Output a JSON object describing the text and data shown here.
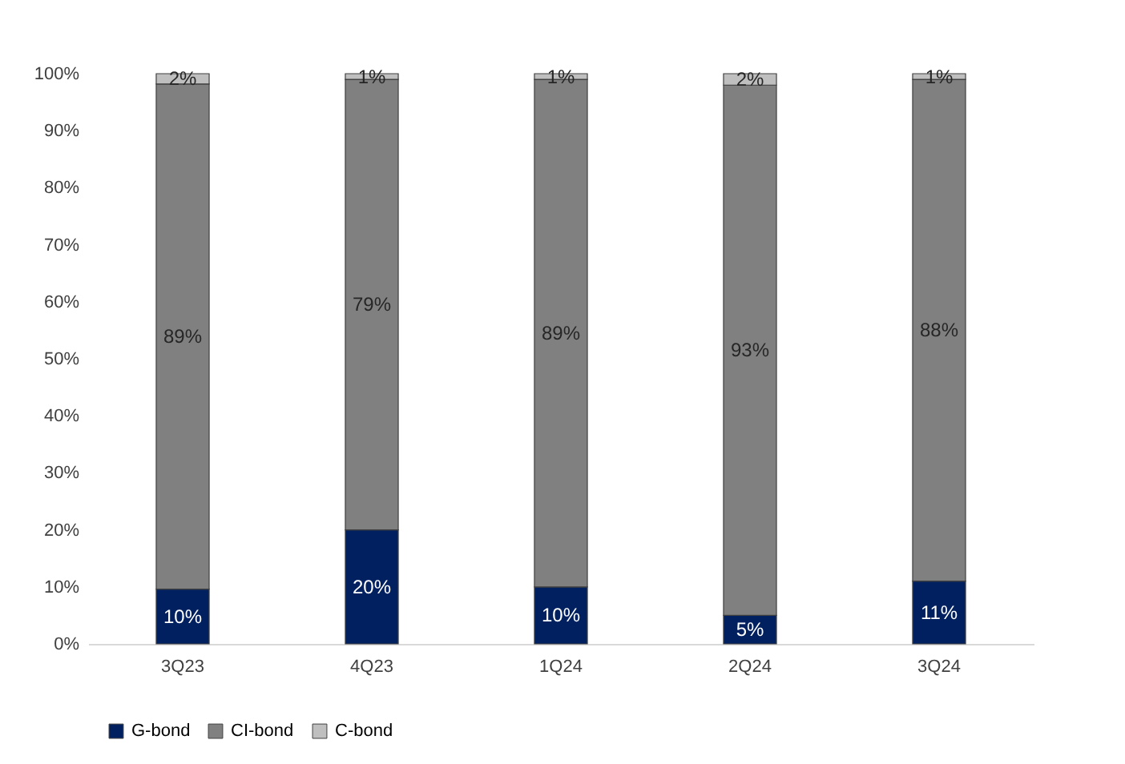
{
  "chart_data": {
    "type": "bar",
    "stacked": true,
    "categories": [
      "3Q23",
      "4Q23",
      "1Q24",
      "2Q24",
      "3Q24"
    ],
    "series": [
      {
        "name": "G-bond",
        "color": "#002060",
        "values": [
          9.6,
          20,
          10,
          5,
          11
        ],
        "value_labels": [
          "10%",
          "20%",
          "10%",
          "5%",
          "11%"
        ]
      },
      {
        "name": "CI-bond",
        "color": "#808080",
        "values": [
          88.6,
          79,
          89,
          93,
          88
        ],
        "value_labels": [
          "89%",
          "79%",
          "89%",
          "93%",
          "88%"
        ]
      },
      {
        "name": "C-bond",
        "color": "#bfbfbf",
        "values": [
          1.8,
          1,
          1,
          2,
          1
        ],
        "value_labels": [
          "2%",
          "1%",
          "1%",
          "2%",
          "1%"
        ]
      }
    ],
    "ylim": [
      0,
      100
    ],
    "yticks": [
      {
        "value": 0,
        "label": "0%"
      },
      {
        "value": 10,
        "label": "10%"
      },
      {
        "value": 20,
        "label": "20%"
      },
      {
        "value": 30,
        "label": "30%"
      },
      {
        "value": 40,
        "label": "40%"
      },
      {
        "value": 50,
        "label": "50%"
      },
      {
        "value": 60,
        "label": "60%"
      },
      {
        "value": 70,
        "label": "70%"
      },
      {
        "value": 80,
        "label": "80%"
      },
      {
        "value": 90,
        "label": "90%"
      },
      {
        "value": 100,
        "label": "100%"
      }
    ],
    "grid": false,
    "legend": "bottom"
  }
}
